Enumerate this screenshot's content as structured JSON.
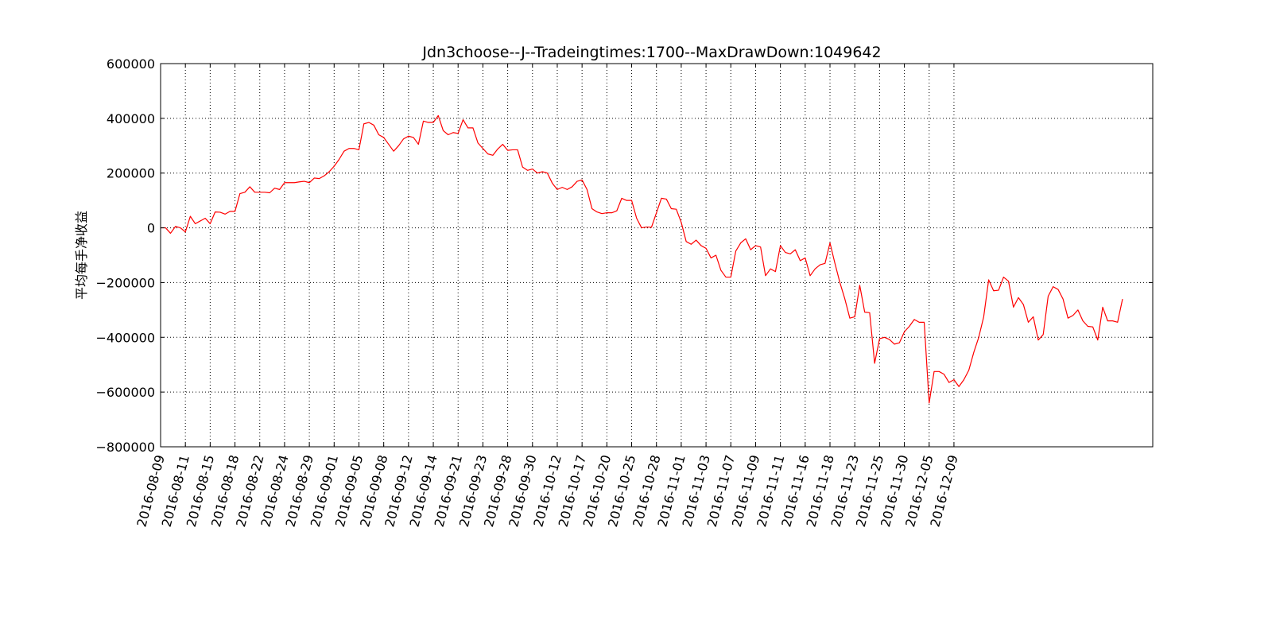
{
  "chart_data": {
    "type": "line",
    "title": "Jdn3choose--J--Tradeingtimes:1700--MaxDrawDown:1049642",
    "xlabel": "",
    "ylabel": "平均每手净收益",
    "ylim": [
      -800000,
      600000
    ],
    "yticks": [
      600000,
      400000,
      200000,
      0,
      -200000,
      -400000,
      -600000,
      -800000
    ],
    "ytick_labels": [
      "600000",
      "400000",
      "200000",
      "0",
      "−200000",
      "−400000",
      "−600000",
      "−800000"
    ],
    "x_tick_labels": [
      "2016-08-09",
      "2016-08-11",
      "2016-08-15",
      "2016-08-18",
      "2016-08-22",
      "2016-08-24",
      "2016-08-29",
      "2016-09-01",
      "2016-09-05",
      "2016-09-08",
      "2016-09-12",
      "2016-09-14",
      "2016-09-21",
      "2016-09-23",
      "2016-09-28",
      "2016-09-30",
      "2016-10-12",
      "2016-10-17",
      "2016-10-20",
      "2016-10-25",
      "2016-10-28",
      "2016-11-01",
      "2016-11-03",
      "2016-11-07",
      "2016-11-09",
      "2016-11-11",
      "2016-11-16",
      "2016-11-18",
      "2016-11-23",
      "2016-11-25",
      "2016-11-30",
      "2016-12-05",
      "2016-12-09"
    ],
    "grid": true,
    "series": [
      {
        "name": "",
        "color": "#ff0000",
        "values": [
          0,
          0,
          -20000,
          5000,
          0,
          -15000,
          42000,
          15000,
          25000,
          35000,
          15000,
          58000,
          57000,
          50000,
          60000,
          60000,
          125000,
          130000,
          150000,
          130000,
          130000,
          130000,
          128000,
          145000,
          140000,
          165000,
          165000,
          165000,
          168000,
          170000,
          165000,
          182000,
          180000,
          190000,
          205000,
          225000,
          250000,
          280000,
          290000,
          290000,
          285000,
          380000,
          385000,
          375000,
          340000,
          330000,
          305000,
          280000,
          300000,
          325000,
          335000,
          330000,
          305000,
          390000,
          385000,
          385000,
          410000,
          355000,
          340000,
          348000,
          345000,
          395000,
          365000,
          365000,
          310000,
          290000,
          270000,
          265000,
          288000,
          305000,
          283000,
          285000,
          285000,
          222000,
          210000,
          215000,
          200000,
          205000,
          200000,
          163000,
          140000,
          148000,
          140000,
          150000,
          170000,
          175000,
          140000,
          70000,
          58000,
          52000,
          55000,
          55000,
          62000,
          108000,
          100000,
          100000,
          35000,
          0,
          3000,
          2000,
          55000,
          108000,
          105000,
          70000,
          68000,
          20000,
          -50000,
          -60000,
          -45000,
          -65000,
          -75000,
          -110000,
          -100000,
          -155000,
          -180000,
          -180000,
          -85000,
          -55000,
          -40000,
          -80000,
          -65000,
          -70000,
          -175000,
          -150000,
          -160000,
          -65000,
          -90000,
          -95000,
          -80000,
          -120000,
          -110000,
          -175000,
          -150000,
          -135000,
          -130000,
          -55000,
          -130000,
          -200000,
          -260000,
          -330000,
          -325000,
          -210000,
          -308000,
          -310000,
          -495000,
          -405000,
          -400000,
          -408000,
          -425000,
          -420000,
          -380000,
          -360000,
          -335000,
          -345000,
          -345000,
          -640000,
          -525000,
          -525000,
          -535000,
          -565000,
          -555000,
          -580000,
          -555000,
          -520000,
          -455000,
          -400000,
          -325000,
          -190000,
          -230000,
          -228000,
          -180000,
          -195000,
          -290000,
          -255000,
          -280000,
          -345000,
          -325000,
          -410000,
          -390000,
          -250000,
          -215000,
          -225000,
          -260000,
          -330000,
          -320000,
          -300000,
          -340000,
          -360000,
          -362000,
          -410000,
          -290000,
          -340000,
          -340000,
          -345000,
          -260000
        ]
      }
    ]
  }
}
